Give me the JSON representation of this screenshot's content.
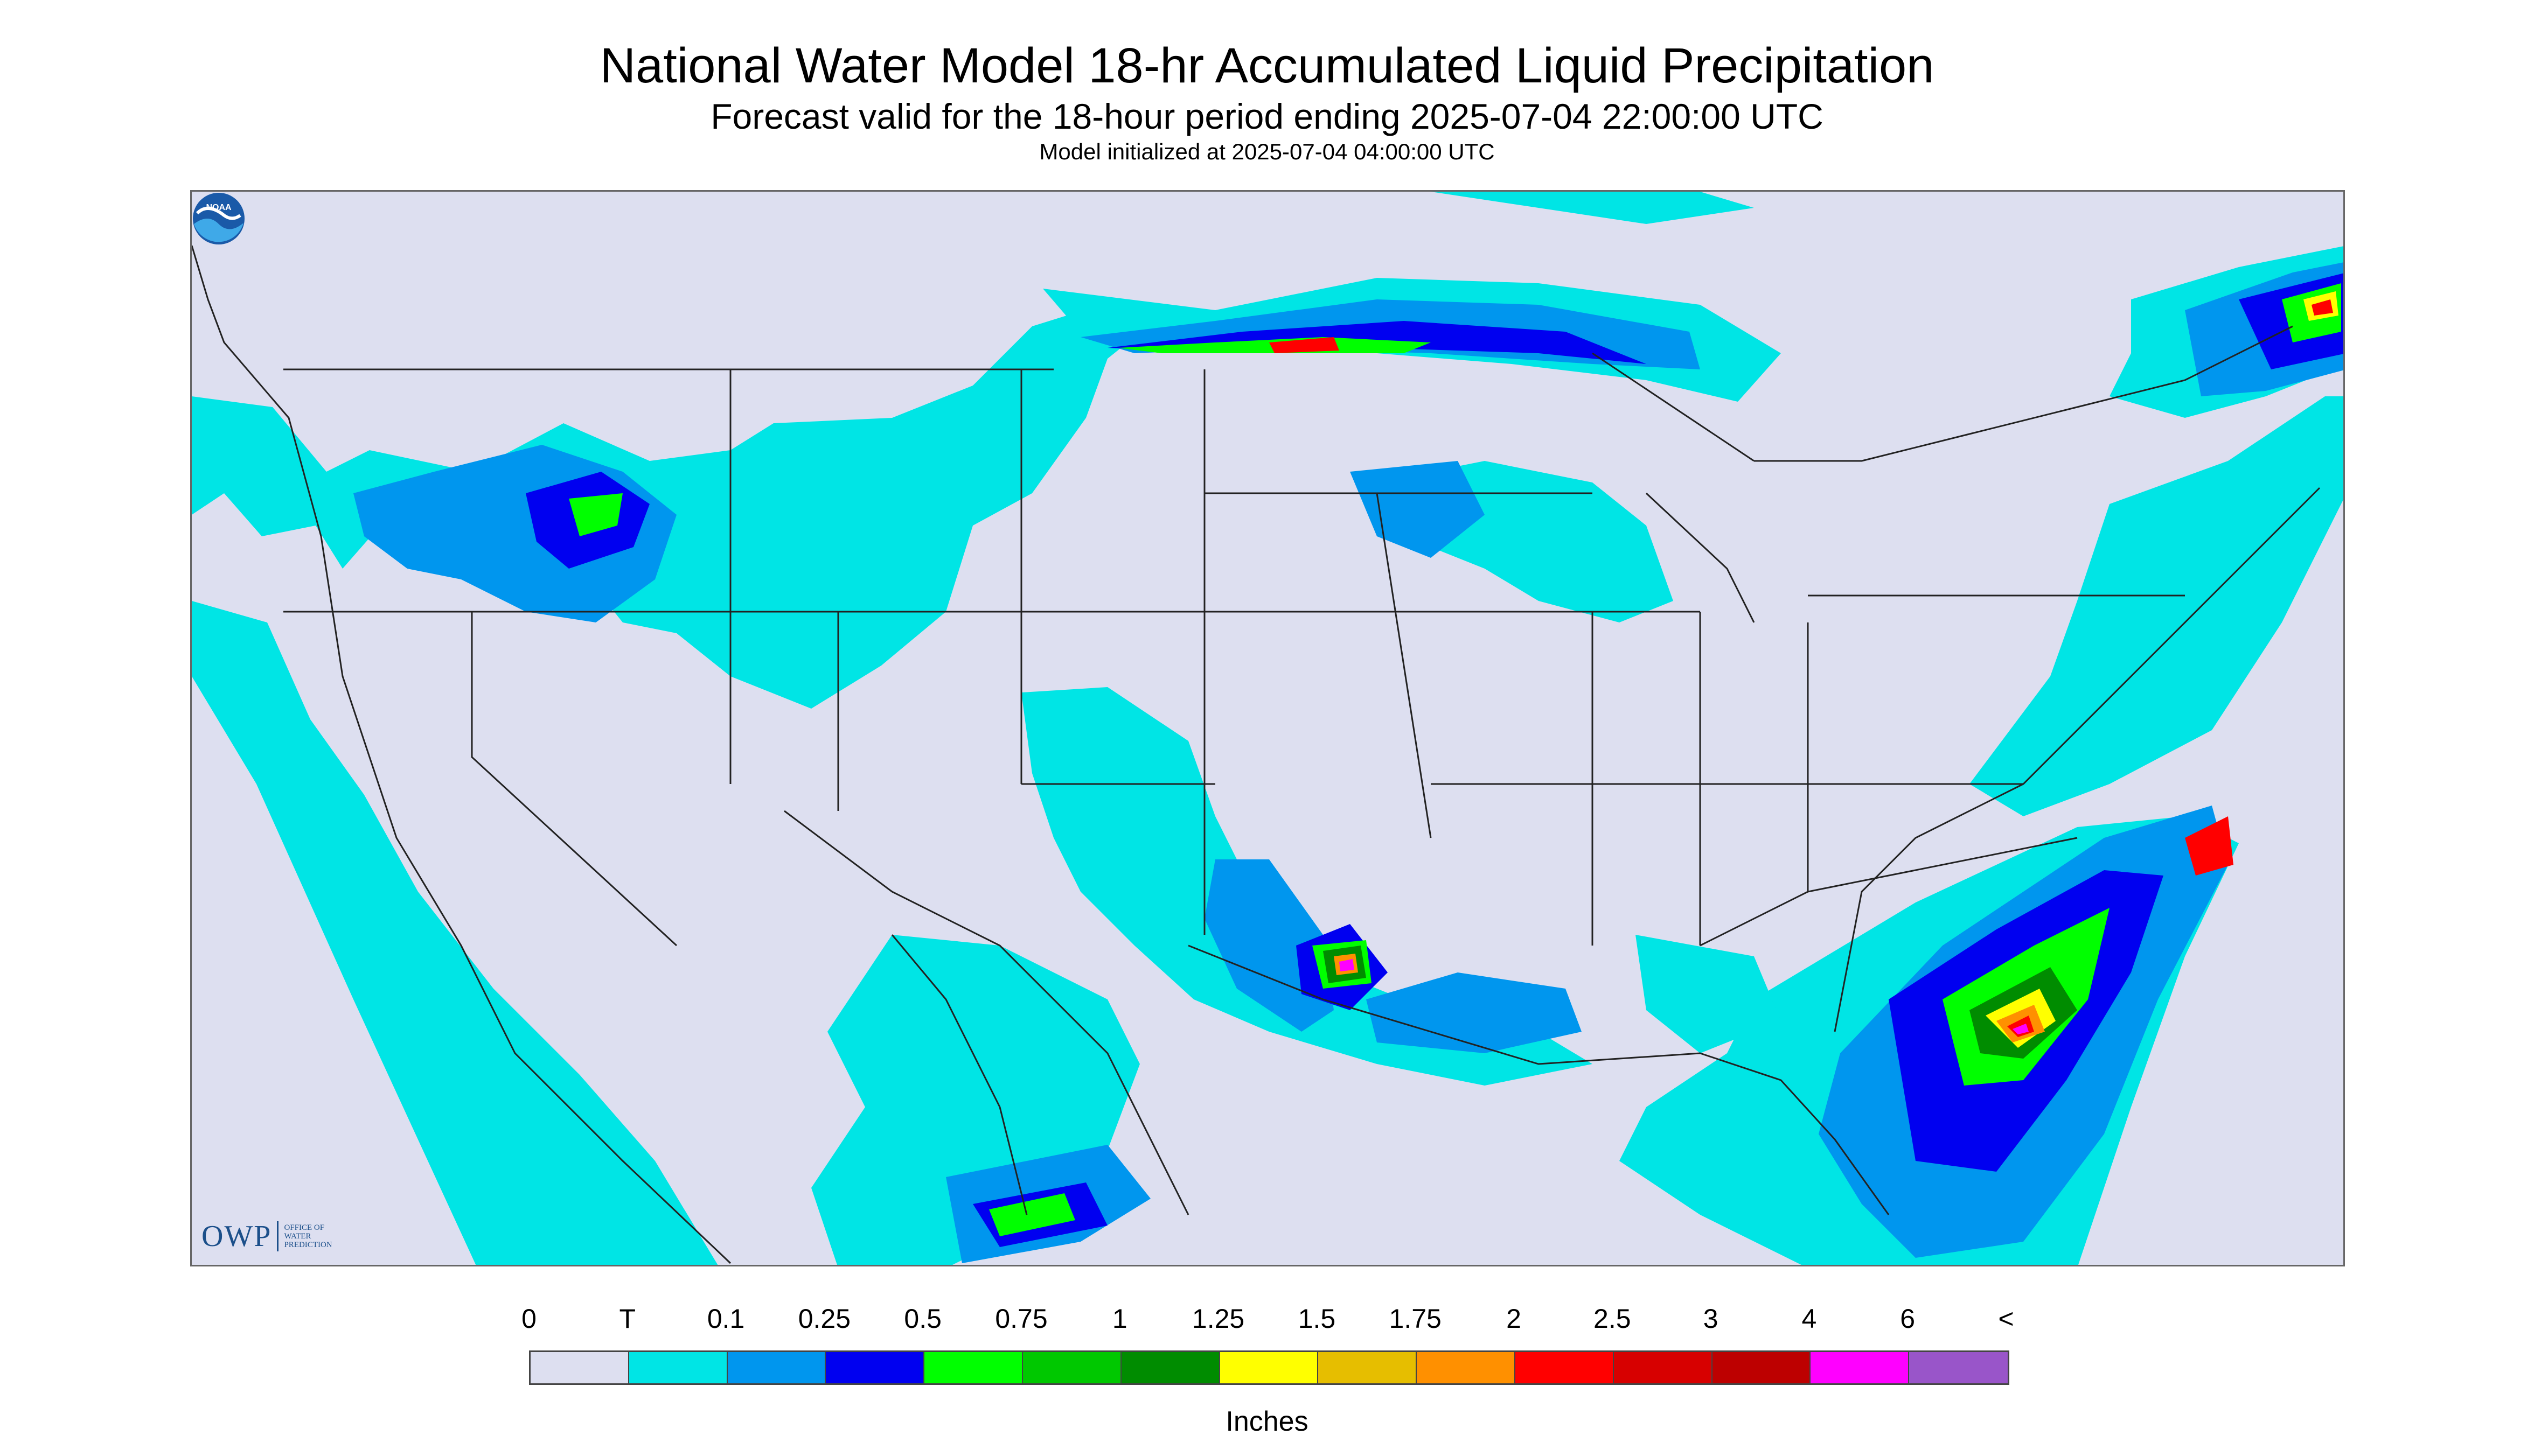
{
  "title": "National Water Model 18-hr Accumulated Liquid Precipitation",
  "subtitle": "Forecast valid for the 18-hour period ending 2025-07-04 22:00:00 UTC",
  "init_line": "Model initialized at 2025-07-04 04:00:00 UTC",
  "logo": {
    "owp_letters": "OWP",
    "owp_text": [
      "OFFICE OF",
      "WATER",
      "PREDICTION"
    ],
    "noaa_text": "NOAA"
  },
  "legend": {
    "labels": [
      "0",
      "T",
      "0.1",
      "0.25",
      "0.5",
      "0.75",
      "1",
      "1.25",
      "1.5",
      "1.75",
      "2",
      "2.5",
      "3",
      "4",
      "6",
      "<"
    ],
    "colors": [
      "#dddff0",
      "#00e5e5",
      "#0096ee",
      "#0000f0",
      "#00ff00",
      "#00c800",
      "#008c00",
      "#ffff00",
      "#e6be00",
      "#ff9000",
      "#ff0000",
      "#d70000",
      "#bd0000",
      "#ff00ff",
      "#9955c9"
    ],
    "units": "Inches"
  },
  "map_colors": {
    "background": "#dddff0",
    "light": "#00e5e5",
    "medium": "#0096ee",
    "heavy": "#0000f0",
    "green": "#00ff00",
    "dgreen": "#008c00",
    "yellow": "#ffff00",
    "orange": "#ff9000",
    "red": "#ff0000",
    "magenta": "#ff00ff",
    "borders": "#222222"
  }
}
